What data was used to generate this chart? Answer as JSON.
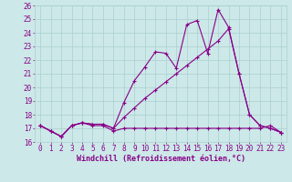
{
  "x_ticks": [
    0,
    1,
    2,
    3,
    4,
    5,
    6,
    7,
    8,
    9,
    10,
    11,
    12,
    13,
    14,
    15,
    16,
    17,
    18,
    19,
    20,
    21,
    22,
    23
  ],
  "line1_x": [
    0,
    1,
    2,
    3,
    4,
    5,
    6,
    7,
    8,
    9,
    10,
    11,
    12,
    13,
    14,
    15,
    16,
    17,
    18,
    19,
    20,
    21,
    22,
    23
  ],
  "line1_y": [
    17.2,
    16.8,
    16.4,
    17.2,
    17.4,
    17.2,
    17.2,
    16.8,
    17.0,
    17.0,
    17.0,
    17.0,
    17.0,
    17.0,
    17.0,
    17.0,
    17.0,
    17.0,
    17.0,
    17.0,
    17.0,
    17.0,
    17.2,
    16.7
  ],
  "line2_x": [
    0,
    1,
    2,
    3,
    4,
    5,
    6,
    7,
    8,
    9,
    10,
    11,
    12,
    13,
    14,
    15,
    16,
    17,
    18,
    19,
    20,
    21,
    22,
    23
  ],
  "line2_y": [
    17.2,
    16.8,
    16.4,
    17.2,
    17.4,
    17.3,
    17.3,
    17.0,
    18.9,
    20.5,
    21.5,
    22.6,
    22.5,
    21.4,
    24.6,
    24.9,
    22.5,
    25.7,
    24.4,
    21.0,
    18.0,
    17.2,
    17.0,
    16.7
  ],
  "line3_x": [
    0,
    1,
    2,
    3,
    4,
    5,
    6,
    7,
    8,
    9,
    10,
    11,
    12,
    13,
    14,
    15,
    16,
    17,
    18,
    19,
    20,
    21,
    22,
    23
  ],
  "line3_y": [
    17.2,
    16.8,
    16.4,
    17.2,
    17.4,
    17.3,
    17.3,
    17.0,
    17.8,
    18.5,
    19.2,
    19.8,
    20.4,
    21.0,
    21.6,
    22.2,
    22.8,
    23.4,
    24.3,
    21.0,
    18.0,
    17.2,
    17.0,
    16.7
  ],
  "line_color": "#880088",
  "bg_color": "#cce8e8",
  "grid_color": "#aacfcf",
  "xlabel": "Windchill (Refroidissement éolien,°C)",
  "ylim": [
    16,
    26
  ],
  "xlim": [
    -0.5,
    23.5
  ],
  "yticks": [
    16,
    17,
    18,
    19,
    20,
    21,
    22,
    23,
    24,
    25,
    26
  ],
  "ylabel_fontsize": 6,
  "xlabel_fontsize": 6,
  "tick_fontsize": 5.5
}
